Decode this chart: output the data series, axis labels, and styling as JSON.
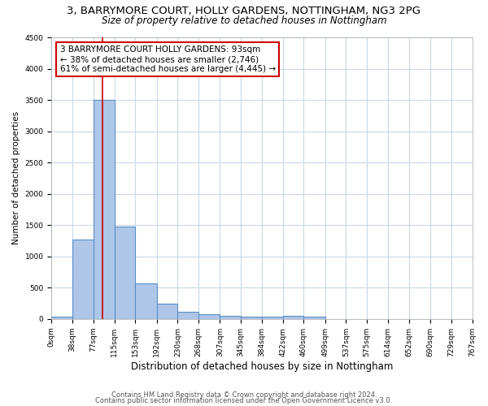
{
  "title1": "3, BARRYMORE COURT, HOLLY GARDENS, NOTTINGHAM, NG3 2PG",
  "title2": "Size of property relative to detached houses in Nottingham",
  "xlabel": "Distribution of detached houses by size in Nottingham",
  "ylabel": "Number of detached properties",
  "bin_edges": [
    0,
    38,
    77,
    115,
    153,
    192,
    230,
    268,
    307,
    345,
    384,
    422,
    460,
    499,
    537,
    575,
    614,
    652,
    690,
    729,
    767
  ],
  "bar_heights": [
    40,
    1270,
    3500,
    1480,
    570,
    245,
    120,
    80,
    45,
    35,
    35,
    50,
    40,
    0,
    0,
    0,
    0,
    0,
    0,
    0
  ],
  "bar_color": "#aec6e8",
  "bar_edge_color": "#5a8fc4",
  "property_size": 93,
  "property_line_color": "#cc0000",
  "annotation_line1": "3 BARRYMORE COURT HOLLY GARDENS: 93sqm",
  "annotation_line2": "← 38% of detached houses are smaller (2,746)",
  "annotation_line3": "61% of semi-detached houses are larger (4,445) →",
  "annotation_box_color": "#ffffff",
  "annotation_box_edge_color": "#cc0000",
  "ylim": [
    0,
    4500
  ],
  "footnote1": "Contains HM Land Registry data © Crown copyright and database right 2024.",
  "footnote2": "Contains public sector information licensed under the Open Government Licence v3.0.",
  "bg_color": "#ffffff",
  "grid_color": "#c8d8e8",
  "title1_fontsize": 9.5,
  "title2_fontsize": 8.5,
  "xlabel_fontsize": 8.5,
  "ylabel_fontsize": 7.5,
  "tick_fontsize": 6.5,
  "annotation_fontsize": 7.5,
  "footnote_fontsize": 6.0
}
